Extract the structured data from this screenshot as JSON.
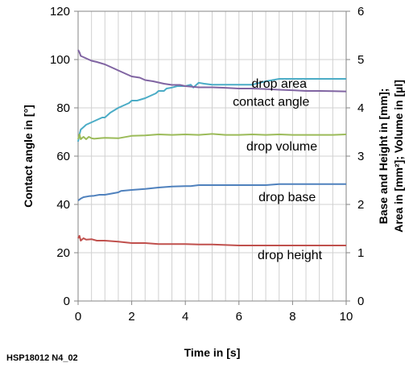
{
  "chart_data": {
    "type": "line",
    "title": "",
    "xlabel": "Time in [s]",
    "ylabel_left": "Contact angle in [°]",
    "ylabel_right_line1": "Base and Height in [mm];",
    "ylabel_right_line2": "Area in [mm²]; Volume in [µl]",
    "xlim": [
      0,
      10
    ],
    "ylim_left": [
      0,
      120
    ],
    "ylim_right": [
      0,
      6
    ],
    "x_ticks": [
      0,
      2,
      4,
      6,
      8,
      10
    ],
    "x_ticklabels": [
      "0",
      "2",
      "4",
      "6",
      "8",
      "10"
    ],
    "y_left_ticks": [
      0,
      20,
      40,
      60,
      80,
      100,
      120
    ],
    "y_left_ticklabels": [
      "0",
      "20",
      "40",
      "60",
      "80",
      "100",
      "120"
    ],
    "y_right_ticks": [
      0,
      1,
      2,
      3,
      4,
      5,
      6
    ],
    "y_right_ticklabels": [
      "0",
      "1",
      "2",
      "3",
      "4",
      "5",
      "6"
    ],
    "x_minor_grid_step": 0.5,
    "grid": true,
    "footnote": "HSP18012 N4_02",
    "series": [
      {
        "name": "drop area",
        "axis": "right",
        "color": "#4bacc6",
        "label_pos": [
          7.5,
          4.5
        ],
        "x": [
          0,
          0.05,
          0.1,
          0.2,
          0.3,
          0.5,
          0.7,
          0.9,
          1.0,
          1.2,
          1.5,
          1.7,
          1.9,
          2.0,
          2.2,
          2.5,
          2.7,
          2.9,
          3.0,
          3.2,
          3.3,
          3.5,
          3.7,
          3.9,
          4.0,
          4.2,
          4.3,
          4.4,
          4.5,
          4.7,
          5.0,
          5.5,
          6.0,
          6.5,
          7.0,
          7.5,
          8.0,
          8.5,
          9.0,
          9.5,
          10.0
        ],
        "y": [
          3.3,
          3.45,
          3.55,
          3.6,
          3.65,
          3.7,
          3.75,
          3.8,
          3.8,
          3.9,
          4.0,
          4.05,
          4.1,
          4.15,
          4.15,
          4.2,
          4.25,
          4.3,
          4.35,
          4.35,
          4.4,
          4.42,
          4.45,
          4.45,
          4.45,
          4.48,
          4.42,
          4.47,
          4.52,
          4.5,
          4.48,
          4.48,
          4.48,
          4.48,
          4.55,
          4.6,
          4.6,
          4.6,
          4.6,
          4.6,
          4.6
        ]
      },
      {
        "name": "contact angle",
        "axis": "left",
        "color": "#8064a2",
        "label_pos": [
          7.2,
          82.5
        ],
        "x": [
          0,
          0.05,
          0.1,
          0.2,
          0.3,
          0.4,
          0.5,
          0.7,
          1.0,
          1.2,
          1.5,
          1.8,
          2.0,
          2.3,
          2.5,
          2.8,
          3.0,
          3.2,
          3.5,
          3.8,
          4.0,
          4.5,
          5.0,
          5.5,
          6.0,
          6.5,
          7.0,
          7.5,
          8.0,
          8.5,
          9.0,
          9.5,
          10.0
        ],
        "y": [
          104,
          103,
          101.5,
          101,
          100.5,
          100,
          99.5,
          99,
          98,
          97,
          95.5,
          94,
          93,
          92.5,
          91.5,
          91,
          90.5,
          90,
          89.5,
          89.5,
          89,
          88.5,
          88.5,
          88.3,
          88,
          88,
          87.8,
          87.5,
          87.3,
          87,
          87,
          86.9,
          86.8
        ]
      },
      {
        "name": "drop volume",
        "axis": "right",
        "color": "#9bbb59",
        "label_pos": [
          7.6,
          3.2
        ],
        "x": [
          0,
          0.05,
          0.1,
          0.2,
          0.3,
          0.4,
          0.5,
          0.6,
          0.8,
          1.0,
          1.5,
          2.0,
          2.5,
          3.0,
          3.5,
          4.0,
          4.5,
          5.0,
          5.5,
          6.0,
          6.5,
          7.0,
          7.5,
          8.0,
          8.5,
          9.0,
          9.5,
          10.0
        ],
        "y": [
          3.35,
          3.45,
          3.35,
          3.4,
          3.35,
          3.4,
          3.37,
          3.36,
          3.37,
          3.38,
          3.37,
          3.42,
          3.43,
          3.45,
          3.44,
          3.45,
          3.44,
          3.46,
          3.44,
          3.44,
          3.45,
          3.44,
          3.45,
          3.44,
          3.44,
          3.44,
          3.44,
          3.45
        ]
      },
      {
        "name": "drop base",
        "axis": "right",
        "color": "#4f81bd",
        "label_pos": [
          7.8,
          2.15
        ],
        "x": [
          0,
          0.1,
          0.2,
          0.4,
          0.6,
          0.8,
          1.0,
          1.5,
          1.6,
          2.0,
          2.5,
          3.0,
          3.5,
          4.0,
          4.2,
          4.5,
          5.0,
          5.5,
          6.0,
          6.5,
          7.0,
          7.5,
          8.0,
          9.0,
          10.0
        ],
        "y": [
          2.08,
          2.12,
          2.15,
          2.17,
          2.18,
          2.2,
          2.2,
          2.25,
          2.28,
          2.3,
          2.32,
          2.35,
          2.37,
          2.38,
          2.38,
          2.4,
          2.4,
          2.4,
          2.4,
          2.4,
          2.4,
          2.42,
          2.42,
          2.42,
          2.42
        ]
      },
      {
        "name": "drop height",
        "axis": "right",
        "color": "#c0504d",
        "label_pos": [
          7.9,
          0.95
        ],
        "x": [
          0,
          0.05,
          0.1,
          0.2,
          0.3,
          0.5,
          0.7,
          1.0,
          1.5,
          2.0,
          2.5,
          3.0,
          3.5,
          4.0,
          4.5,
          5.0,
          5.5,
          6.0,
          7.0,
          8.0,
          9.0,
          10.0
        ],
        "y": [
          1.3,
          1.35,
          1.25,
          1.3,
          1.27,
          1.28,
          1.25,
          1.25,
          1.23,
          1.2,
          1.2,
          1.18,
          1.18,
          1.18,
          1.17,
          1.17,
          1.16,
          1.15,
          1.15,
          1.15,
          1.15,
          1.15
        ]
      }
    ]
  }
}
